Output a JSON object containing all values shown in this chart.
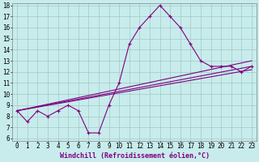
{
  "xlabel": "Windchill (Refroidissement éolien,°C)",
  "background_color": "#c8ecec",
  "grid_color": "#a0c8c8",
  "line_color": "#800080",
  "x": [
    0,
    1,
    2,
    3,
    4,
    5,
    6,
    7,
    8,
    9,
    10,
    11,
    12,
    13,
    14,
    15,
    16,
    17,
    18,
    19,
    20,
    21,
    22,
    23
  ],
  "y_main": [
    8.5,
    7.5,
    8.5,
    8.0,
    8.5,
    9.0,
    8.5,
    6.5,
    6.5,
    9.0,
    11.0,
    14.5,
    16.0,
    17.0,
    18.0,
    17.0,
    16.0,
    14.5,
    13.0,
    12.5,
    12.5,
    12.5,
    12.0,
    12.5
  ],
  "linear_lines": [
    {
      "x0": 0,
      "y0": 8.5,
      "x1": 23,
      "y1": 13.0
    },
    {
      "x0": 0,
      "y0": 8.5,
      "x1": 23,
      "y1": 12.2
    },
    {
      "x0": 0,
      "y0": 8.5,
      "x1": 23,
      "y1": 12.5
    }
  ],
  "ylim": [
    6,
    18
  ],
  "xlim": [
    -0.5,
    23.5
  ],
  "yticks": [
    6,
    7,
    8,
    9,
    10,
    11,
    12,
    13,
    14,
    15,
    16,
    17,
    18
  ],
  "xticks": [
    0,
    1,
    2,
    3,
    4,
    5,
    6,
    7,
    8,
    9,
    10,
    11,
    12,
    13,
    14,
    15,
    16,
    17,
    18,
    19,
    20,
    21,
    22,
    23
  ],
  "marker": "+",
  "markersize": 3,
  "linewidth": 0.8,
  "xlabel_fontsize": 6,
  "tick_fontsize": 5.5
}
